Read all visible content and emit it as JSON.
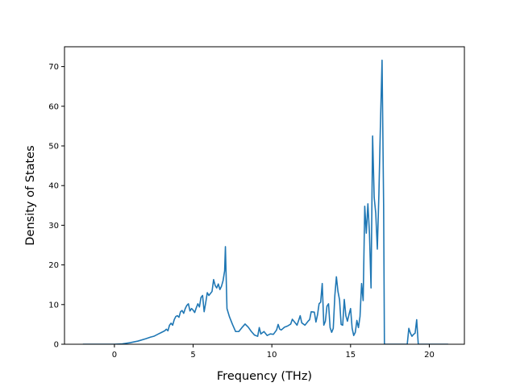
{
  "chart_data": {
    "type": "line",
    "title": "",
    "xlabel": "Frequency (THz)",
    "ylabel": "Density of States",
    "xlim": [
      -3.17,
      22.23
    ],
    "ylim": [
      0,
      75
    ],
    "xticks": [
      0,
      5,
      10,
      15,
      20
    ],
    "yticks": [
      0,
      10,
      20,
      30,
      40,
      50,
      60,
      70
    ],
    "grid": false,
    "legend": "none",
    "series": [
      {
        "color": "#1f77b4",
        "points": [
          [
            -2.0,
            0
          ],
          [
            -1.0,
            0
          ],
          [
            0.0,
            0
          ],
          [
            0.5,
            0.1
          ],
          [
            1.0,
            0.4
          ],
          [
            1.5,
            0.8
          ],
          [
            2.0,
            1.4
          ],
          [
            2.3,
            1.8
          ],
          [
            2.5,
            2.0
          ],
          [
            2.8,
            2.6
          ],
          [
            3.0,
            3.0
          ],
          [
            3.2,
            3.4
          ],
          [
            3.3,
            3.8
          ],
          [
            3.4,
            3.4
          ],
          [
            3.5,
            4.8
          ],
          [
            3.6,
            5.3
          ],
          [
            3.7,
            4.8
          ],
          [
            3.8,
            6.2
          ],
          [
            3.9,
            7.0
          ],
          [
            4.0,
            7.2
          ],
          [
            4.1,
            6.8
          ],
          [
            4.2,
            8.2
          ],
          [
            4.3,
            8.5
          ],
          [
            4.4,
            7.8
          ],
          [
            4.5,
            9.0
          ],
          [
            4.6,
            9.8
          ],
          [
            4.7,
            10.2
          ],
          [
            4.8,
            8.4
          ],
          [
            4.9,
            9.0
          ],
          [
            5.0,
            8.6
          ],
          [
            5.1,
            8.0
          ],
          [
            5.2,
            9.2
          ],
          [
            5.3,
            10.2
          ],
          [
            5.4,
            9.4
          ],
          [
            5.5,
            11.8
          ],
          [
            5.6,
            12.3
          ],
          [
            5.7,
            8.2
          ],
          [
            5.8,
            10.5
          ],
          [
            5.9,
            13.0
          ],
          [
            6.0,
            12.3
          ],
          [
            6.1,
            12.8
          ],
          [
            6.2,
            13.3
          ],
          [
            6.3,
            16.3
          ],
          [
            6.4,
            14.8
          ],
          [
            6.5,
            14.2
          ],
          [
            6.6,
            15.2
          ],
          [
            6.7,
            13.8
          ],
          [
            6.8,
            14.6
          ],
          [
            6.9,
            16.0
          ],
          [
            7.0,
            18.5
          ],
          [
            7.05,
            24.6
          ],
          [
            7.15,
            9.0
          ],
          [
            7.3,
            7.0
          ],
          [
            7.5,
            5.0
          ],
          [
            7.7,
            3.2
          ],
          [
            7.9,
            3.2
          ],
          [
            8.1,
            4.2
          ],
          [
            8.3,
            5.1
          ],
          [
            8.5,
            4.3
          ],
          [
            8.7,
            3.2
          ],
          [
            8.9,
            2.3
          ],
          [
            9.1,
            2.0
          ],
          [
            9.2,
            4.2
          ],
          [
            9.3,
            2.6
          ],
          [
            9.5,
            3.2
          ],
          [
            9.7,
            2.2
          ],
          [
            9.9,
            2.6
          ],
          [
            10.1,
            2.5
          ],
          [
            10.3,
            3.6
          ],
          [
            10.4,
            5.0
          ],
          [
            10.5,
            3.8
          ],
          [
            10.6,
            3.6
          ],
          [
            10.8,
            4.3
          ],
          [
            11.0,
            4.6
          ],
          [
            11.2,
            5.1
          ],
          [
            11.3,
            6.3
          ],
          [
            11.5,
            5.3
          ],
          [
            11.6,
            4.8
          ],
          [
            11.8,
            7.2
          ],
          [
            11.9,
            5.4
          ],
          [
            12.1,
            4.8
          ],
          [
            12.3,
            5.8
          ],
          [
            12.4,
            6.2
          ],
          [
            12.5,
            8.2
          ],
          [
            12.7,
            8.1
          ],
          [
            12.8,
            5.6
          ],
          [
            12.9,
            7.4
          ],
          [
            13.0,
            10.2
          ],
          [
            13.1,
            10.6
          ],
          [
            13.2,
            15.3
          ],
          [
            13.3,
            4.8
          ],
          [
            13.4,
            5.8
          ],
          [
            13.5,
            9.6
          ],
          [
            13.6,
            10.2
          ],
          [
            13.7,
            4.2
          ],
          [
            13.8,
            3.0
          ],
          [
            13.9,
            4.0
          ],
          [
            14.0,
            12.2
          ],
          [
            14.1,
            17.0
          ],
          [
            14.2,
            13.3
          ],
          [
            14.3,
            11.2
          ],
          [
            14.4,
            5.0
          ],
          [
            14.5,
            4.8
          ],
          [
            14.6,
            11.3
          ],
          [
            14.7,
            7.2
          ],
          [
            14.8,
            5.8
          ],
          [
            14.9,
            7.5
          ],
          [
            15.0,
            9.0
          ],
          [
            15.1,
            4.0
          ],
          [
            15.2,
            2.2
          ],
          [
            15.3,
            3.0
          ],
          [
            15.4,
            6.0
          ],
          [
            15.5,
            4.2
          ],
          [
            15.6,
            7.0
          ],
          [
            15.7,
            15.3
          ],
          [
            15.8,
            11.0
          ],
          [
            15.9,
            34.8
          ],
          [
            16.0,
            28.0
          ],
          [
            16.1,
            35.4
          ],
          [
            16.2,
            28.0
          ],
          [
            16.3,
            14.2
          ],
          [
            16.4,
            52.5
          ],
          [
            16.5,
            37.0
          ],
          [
            16.6,
            33.0
          ],
          [
            16.7,
            24.0
          ],
          [
            16.8,
            38.0
          ],
          [
            16.9,
            56.0
          ],
          [
            17.0,
            71.6
          ],
          [
            17.1,
            35.0
          ],
          [
            17.15,
            0
          ],
          [
            18.0,
            0
          ],
          [
            18.6,
            0
          ],
          [
            18.7,
            4.0
          ],
          [
            18.8,
            2.8
          ],
          [
            18.9,
            2.0
          ],
          [
            19.0,
            2.5
          ],
          [
            19.1,
            2.8
          ],
          [
            19.2,
            6.2
          ],
          [
            19.25,
            3.0
          ],
          [
            19.3,
            0
          ],
          [
            20.0,
            0
          ],
          [
            21.2,
            0
          ]
        ]
      }
    ]
  }
}
